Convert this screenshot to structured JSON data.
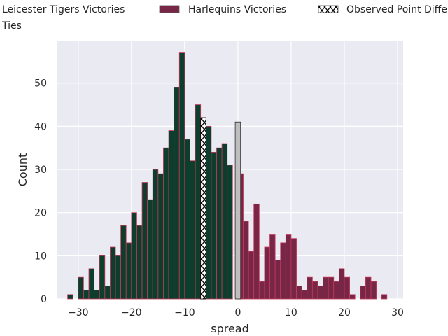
{
  "chart_data": {
    "type": "bar",
    "xlabel": "spread",
    "ylabel": "Count",
    "xlim": [
      -34.05,
      31.05
    ],
    "ylim": [
      0,
      59.85
    ],
    "xticks": [
      -30,
      -20,
      -10,
      0,
      10,
      20,
      30
    ],
    "yticks": [
      0,
      10,
      20,
      30,
      40,
      50
    ],
    "grid": true,
    "legend_position": "top",
    "bin_width": 1,
    "legend": [
      {
        "label": "Leicester Tigers Victories",
        "key": "leicester"
      },
      {
        "label": "Harlequins Victories",
        "key": "harlequins"
      },
      {
        "label": "Observed Point Differential",
        "key": "observed"
      },
      {
        "label": "Ties",
        "key": "ties"
      }
    ],
    "series": [
      {
        "name": "Leicester Tigers Victories",
        "bins": [
          [
            -32,
            1
          ],
          [
            -31,
            0
          ],
          [
            -30,
            5
          ],
          [
            -29,
            2
          ],
          [
            -28,
            7
          ],
          [
            -27,
            2
          ],
          [
            -26,
            10
          ],
          [
            -25,
            3
          ],
          [
            -24,
            12
          ],
          [
            -23,
            10
          ],
          [
            -22,
            17
          ],
          [
            -21,
            13
          ],
          [
            -20,
            20
          ],
          [
            -19,
            17
          ],
          [
            -18,
            27
          ],
          [
            -17,
            23
          ],
          [
            -16,
            30
          ],
          [
            -15,
            29
          ],
          [
            -14,
            35
          ],
          [
            -13,
            39
          ],
          [
            -12,
            49
          ],
          [
            -11,
            57
          ],
          [
            -10,
            37
          ],
          [
            -9,
            32
          ],
          [
            -8,
            45
          ],
          [
            -7,
            42
          ],
          [
            -6,
            40
          ],
          [
            -5,
            34
          ],
          [
            -4,
            35
          ],
          [
            -3,
            36
          ],
          [
            -2,
            31
          ],
          [
            -1,
            0
          ]
        ]
      },
      {
        "name": "Harlequins Victories",
        "bins": [
          [
            0,
            29
          ],
          [
            1,
            18
          ],
          [
            2,
            11
          ],
          [
            3,
            22
          ],
          [
            4,
            4
          ],
          [
            5,
            12
          ],
          [
            6,
            15
          ],
          [
            7,
            9
          ],
          [
            8,
            13
          ],
          [
            9,
            15
          ],
          [
            10,
            14
          ],
          [
            11,
            3
          ],
          [
            12,
            2
          ],
          [
            13,
            5
          ],
          [
            14,
            4
          ],
          [
            15,
            3
          ],
          [
            16,
            5
          ],
          [
            17,
            5
          ],
          [
            18,
            4
          ],
          [
            19,
            7
          ],
          [
            20,
            5
          ],
          [
            21,
            1
          ],
          [
            22,
            0
          ],
          [
            23,
            3
          ],
          [
            24,
            5
          ],
          [
            25,
            4
          ],
          [
            26,
            0
          ],
          [
            27,
            1
          ]
        ]
      },
      {
        "name": "Ties",
        "bins": [
          [
            -0.5,
            41
          ]
        ]
      },
      {
        "name": "Observed Point Differential",
        "bins": [
          [
            -7,
            42
          ]
        ]
      }
    ],
    "colors": {
      "background": "#eaeaf2",
      "grid": "#ffffff",
      "leicester": "#0d3d2d",
      "harlequins": "#782645",
      "edge": "#c33a5a",
      "ties": "#bebebe",
      "observed_fill": "#ffffff",
      "observed_hatch": "#000000"
    }
  }
}
